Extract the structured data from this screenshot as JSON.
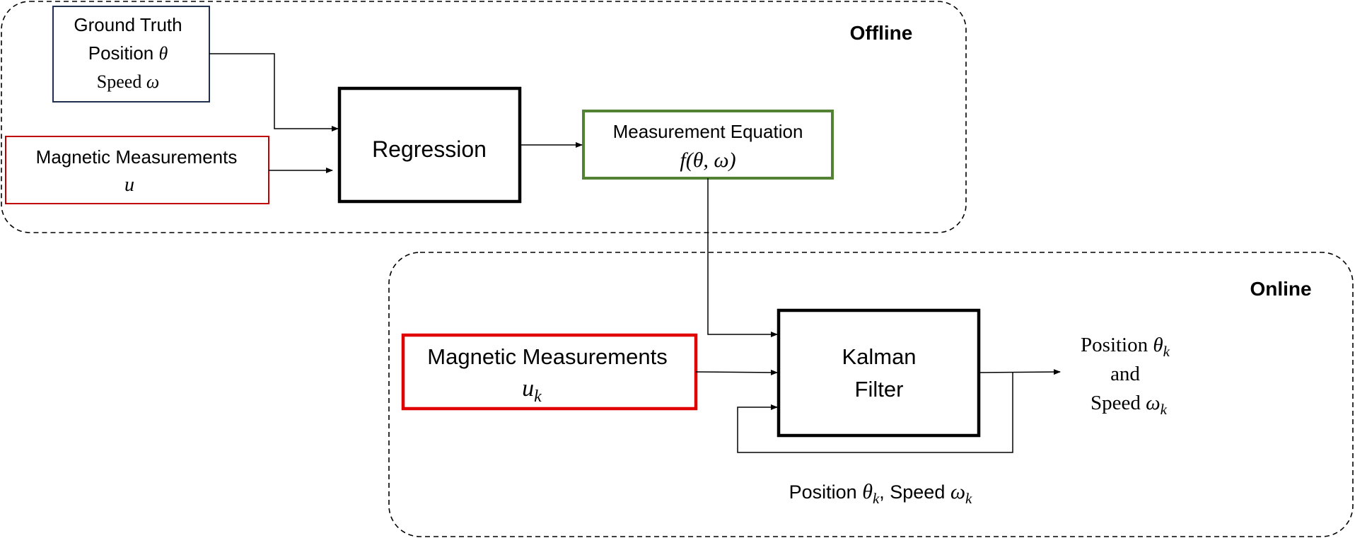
{
  "regions": {
    "offline_label": "Offline",
    "online_label": "Online"
  },
  "nodes": {
    "ground_truth": {
      "line1": "Ground Truth",
      "line2_text": "Position ",
      "line2_var": "θ",
      "line3_text": "Speed ",
      "line3_var": "ω"
    },
    "magnetic_offline": {
      "line1": "Magnetic Measurements",
      "var": "u"
    },
    "regression": {
      "label": "Regression"
    },
    "measurement_equation": {
      "line1": "Measurement Equation",
      "formula": "f(θ, ω)"
    },
    "magnetic_online": {
      "line1": "Magnetic Measurements",
      "var": "u",
      "sub": "k"
    },
    "kalman_filter": {
      "line1": "Kalman",
      "line2": "Filter"
    },
    "output": {
      "line1_text": "Position ",
      "line1_var": "θ",
      "line1_sub": "k",
      "line2": "and",
      "line3_text": "Speed ",
      "line3_var": "ω",
      "line3_sub": "k"
    },
    "feedback_label": {
      "pos_text": "Position ",
      "pos_var": "θ",
      "pos_sub": "k",
      "sep": ", Speed ",
      "speed_var": "ω",
      "speed_sub": "k"
    }
  },
  "colors": {
    "ground_truth_border": "#1f2f4f",
    "magnetic_border": "#c00000",
    "measurement_eq_border": "#548235",
    "block_border": "#000000",
    "line": "#000000"
  }
}
